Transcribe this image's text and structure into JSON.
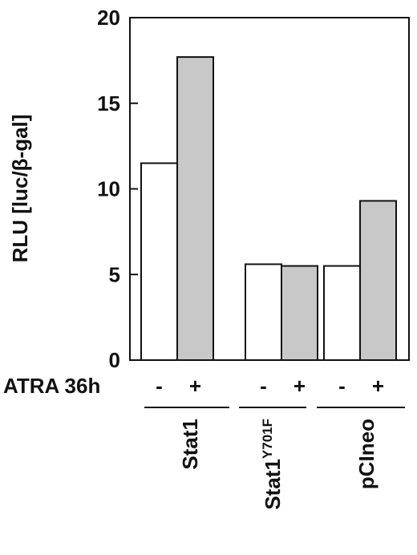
{
  "chart_data": {
    "type": "bar",
    "title": "",
    "ylabel": "RLU [luc/β-gal]",
    "xlabel": "",
    "ylim": [
      0,
      20
    ],
    "yticks": [
      "0",
      "5",
      "10",
      "15",
      "20"
    ],
    "treatment_label": "ATRA 36h",
    "groups": [
      {
        "label": "Stat1",
        "label_sup": ""
      },
      {
        "label": "Stat1",
        "label_sup": "Y701F"
      },
      {
        "label": "pCIneo",
        "label_sup": ""
      }
    ],
    "series": [
      {
        "name": "-",
        "color": "#ffffff",
        "values": [
          11.5,
          5.6,
          5.5
        ]
      },
      {
        "name": "+",
        "color": "#c8c8c8",
        "values": [
          17.7,
          5.5,
          9.3
        ]
      }
    ],
    "grid": false,
    "legend": "none"
  }
}
